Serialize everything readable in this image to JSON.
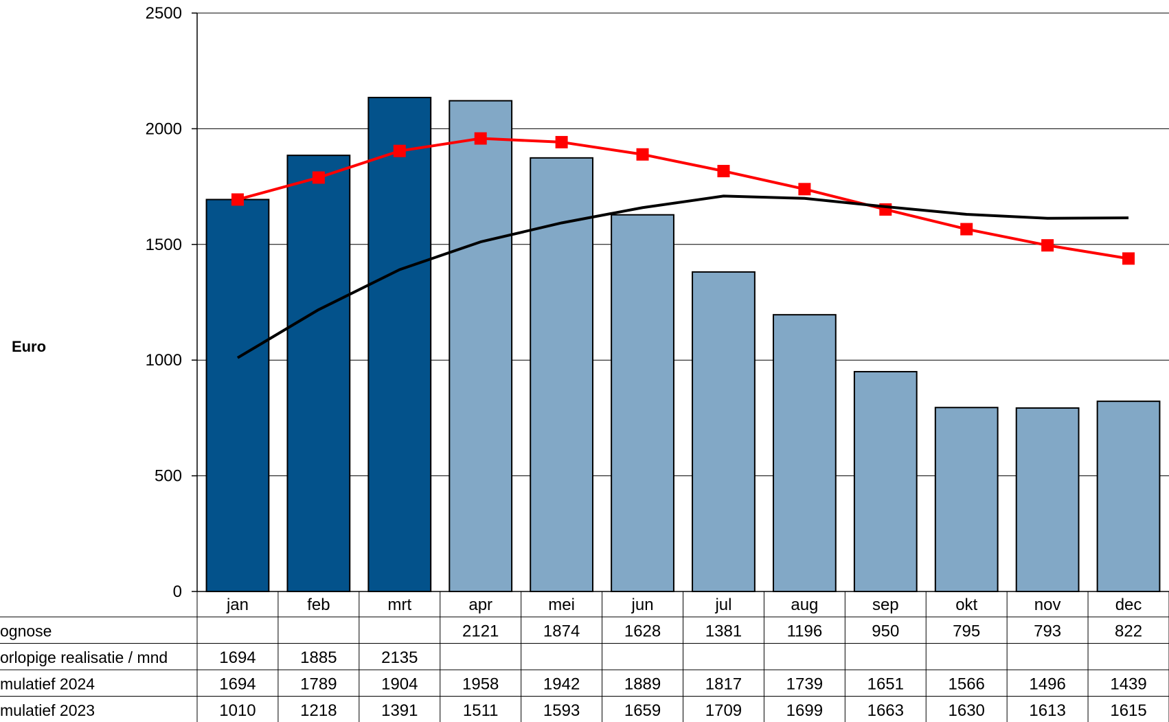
{
  "chart_data": {
    "type": "bar",
    "ylabel": "Euro",
    "ylim": [
      0,
      2500
    ],
    "yticks": [
      0,
      500,
      1000,
      1500,
      2000,
      2500
    ],
    "grid": true,
    "categories": [
      "jan",
      "feb",
      "mrt",
      "apr",
      "mei",
      "jun",
      "jul",
      "aug",
      "sep",
      "okt",
      "nov",
      "dec"
    ],
    "series": [
      {
        "name": "ognose",
        "type": "bar",
        "color": "#82A8C6",
        "values": [
          null,
          null,
          null,
          2121,
          1874,
          1628,
          1381,
          1196,
          950,
          795,
          793,
          822
        ]
      },
      {
        "name": "orlopige realisatie / mnd",
        "type": "bar",
        "color": "#03528B",
        "values": [
          1694,
          1885,
          2135,
          null,
          null,
          null,
          null,
          null,
          null,
          null,
          null,
          null
        ]
      },
      {
        "name": "mulatief 2024",
        "type": "line",
        "color": "#FF0000",
        "marker": "square",
        "values": [
          1694,
          1789,
          1904,
          1958,
          1942,
          1889,
          1817,
          1739,
          1651,
          1566,
          1496,
          1439
        ]
      },
      {
        "name": "mulatief 2023",
        "type": "line",
        "color": "#000000",
        "marker": "none",
        "values": [
          1010,
          1218,
          1391,
          1511,
          1593,
          1659,
          1709,
          1699,
          1663,
          1630,
          1613,
          1615
        ]
      }
    ]
  }
}
